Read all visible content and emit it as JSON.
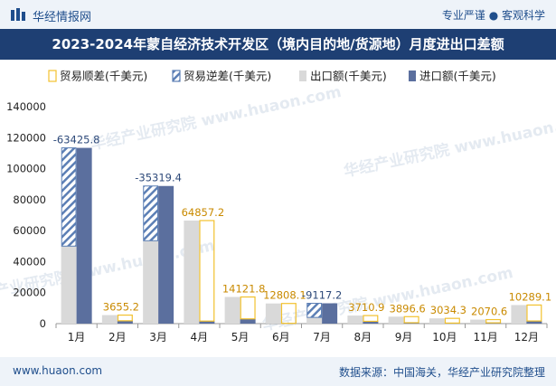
{
  "header": {
    "site_name": "华经情报网",
    "tagline": "专业严谨 ● 客观科学"
  },
  "footer": {
    "url": "www.huaon.com",
    "source": "数据来源：中国海关，华经产业研究院整理"
  },
  "watermark": "华经产业研究院 www.huaon.com",
  "colors": {
    "title_bg": "#1e3f73",
    "surplus": "#f2c12e",
    "deficit_stripe": "#5c7fb5",
    "export": "#d9d9d9",
    "import": "#5b6f9e",
    "label_surplus": "#c98a00",
    "label_deficit": "#2e4a7a"
  },
  "chart_data": {
    "type": "bar",
    "title": "2023-2024年蒙自经济技术开发区（境内目的地/货源地）月度进出口差额",
    "categories": [
      "1月",
      "2月",
      "3月",
      "4月",
      "5月",
      "6月",
      "7月",
      "8月",
      "9月",
      "10月",
      "11月",
      "12月"
    ],
    "legend": [
      "贸易顺差(千美元)",
      "贸易逆差(千美元)",
      "出口额(千美元)",
      "进口额(千美元)"
    ],
    "legend_position": "top",
    "ylim": [
      0,
      140000
    ],
    "yticks": [
      0,
      20000,
      40000,
      60000,
      80000,
      100000,
      120000,
      140000
    ],
    "ytick_labels": [
      "0",
      "20000",
      "40000",
      "60000",
      "80000",
      "100000",
      "120000",
      "140000"
    ],
    "series": [
      {
        "name": "出口额(千美元)",
        "values": [
          50000,
          5500,
          53500,
          66500,
          17200,
          13000,
          4000,
          5200,
          4500,
          3400,
          2600,
          12000
        ]
      },
      {
        "name": "进口额(千美元)",
        "values": [
          113425.8,
          1844.8,
          88819.4,
          1642.8,
          3078.2,
          191.9,
          13117.2,
          1489.1,
          603.4,
          365.9,
          529.4,
          1710.9
        ]
      }
    ],
    "balance": [
      -63425.8,
      3655.2,
      -35319.4,
      64857.2,
      14121.8,
      12808.1,
      -9117.2,
      3710.9,
      3896.6,
      3034.3,
      2070.6,
      10289.1
    ],
    "balance_labels": [
      "-63425.8",
      "3655.2",
      "-35319.4",
      "64857.2",
      "14121.8",
      "12808.1",
      "-9117.2",
      "3710.9",
      "3896.6",
      "3034.3",
      "2070.6",
      "10289.1"
    ]
  }
}
